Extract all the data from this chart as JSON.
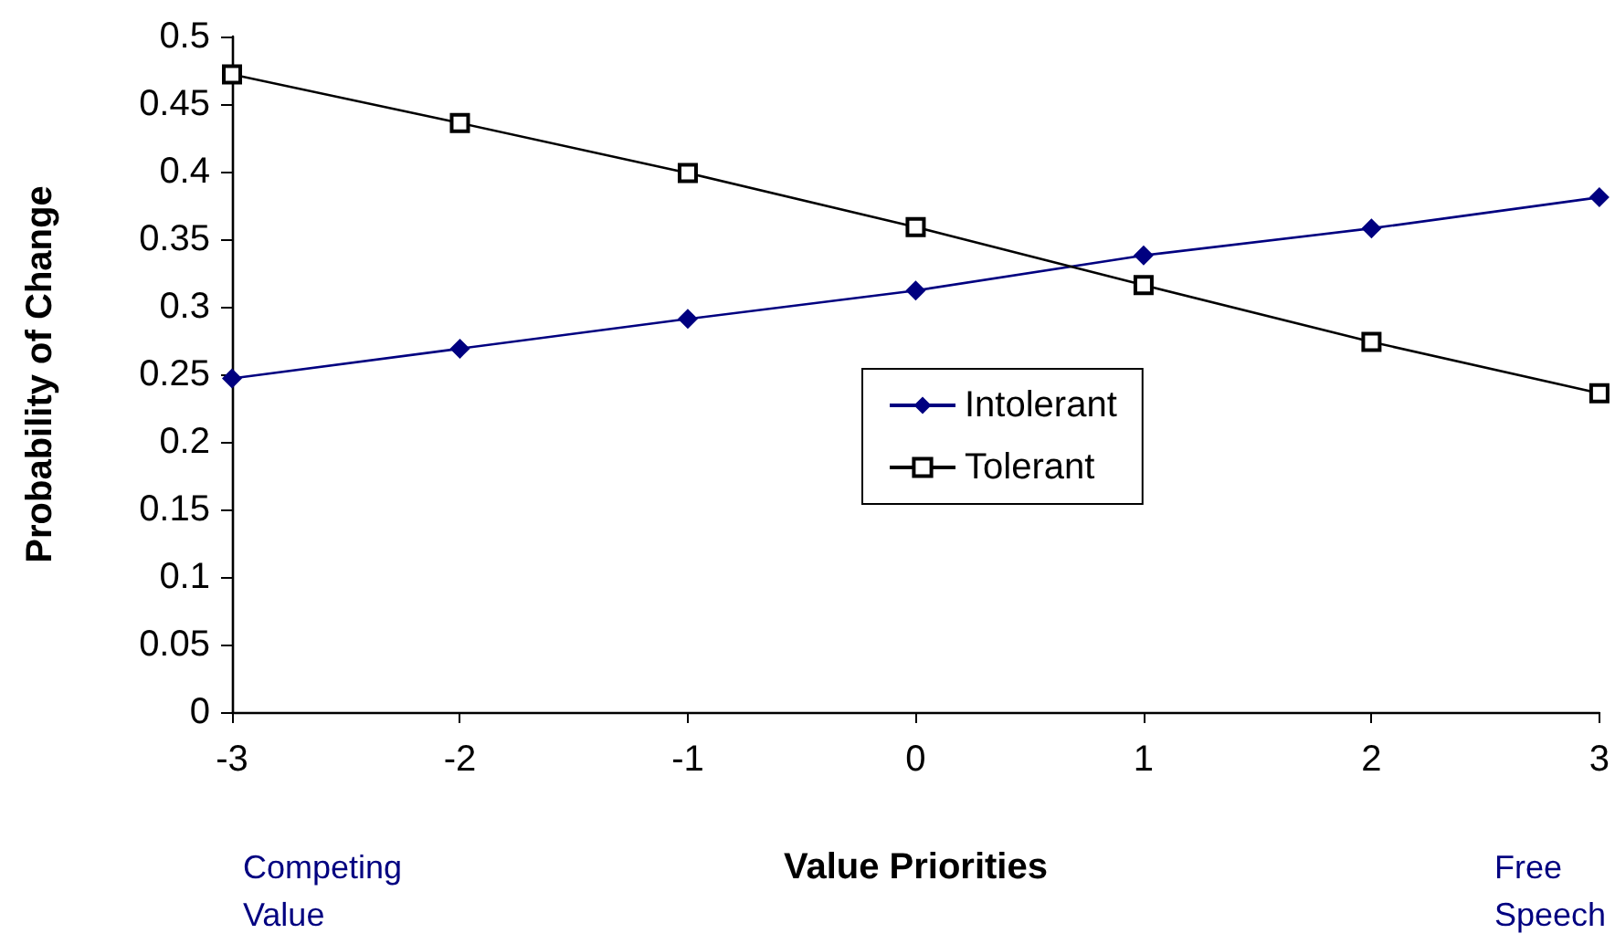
{
  "chart_data": {
    "type": "line",
    "xlabel": "Value Priorities",
    "ylabel": "Probability of Change",
    "x": [
      -3,
      -2,
      -1,
      0,
      1,
      2,
      3
    ],
    "series": [
      {
        "name": "Intolerant",
        "color": "#000080",
        "marker": "diamond",
        "values": [
          0.247,
          0.269,
          0.291,
          0.312,
          0.338,
          0.358,
          0.381
        ]
      },
      {
        "name": "Tolerant",
        "color": "#000000",
        "marker": "square",
        "values": [
          0.472,
          0.436,
          0.399,
          0.359,
          0.316,
          0.274,
          0.236
        ]
      }
    ],
    "xlim": [
      -3,
      3
    ],
    "xticks": [
      -3,
      -2,
      -1,
      0,
      1,
      2,
      3
    ],
    "ylim": [
      0,
      0.5
    ],
    "yticks": [
      0,
      0.05,
      0.1,
      0.15,
      0.2,
      0.25,
      0.3,
      0.35,
      0.4,
      0.45,
      0.5
    ],
    "grid": false,
    "legend": "right",
    "line_style": "solid",
    "annotations": [
      "Competing Value",
      "Free Speech"
    ]
  }
}
